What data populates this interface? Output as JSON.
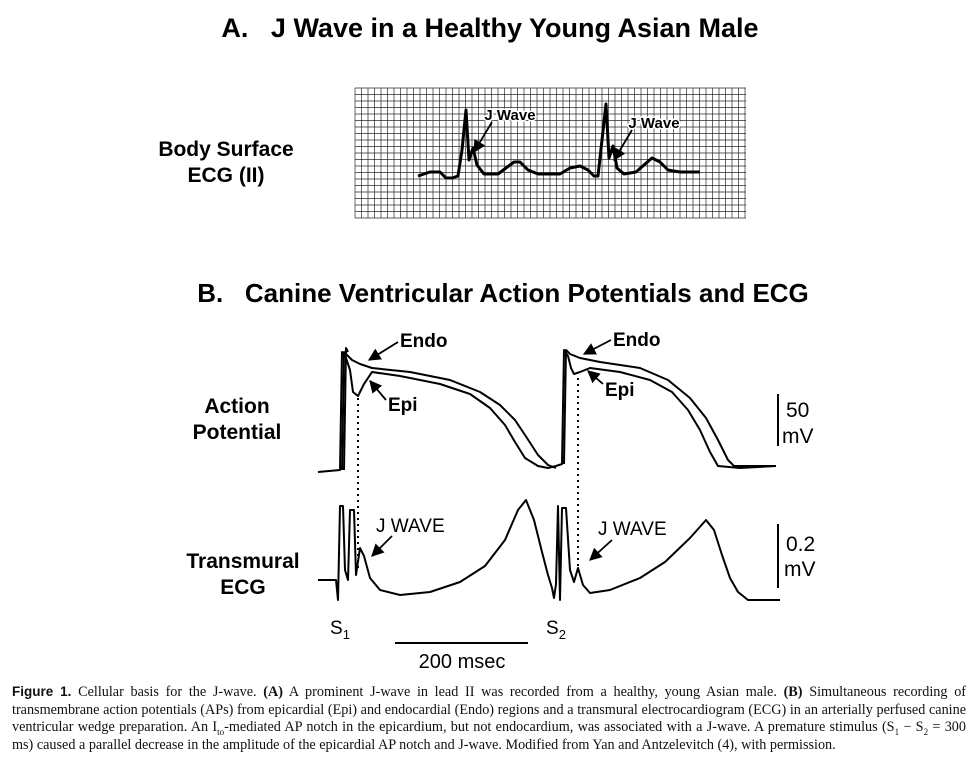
{
  "panel_a": {
    "title": "A.   J Wave in a Healthy Young Asian Male",
    "ecg_label_line1": "Body Surface",
    "ecg_label_line2": "ECG (II)",
    "jwave_label_1": "J Wave",
    "jwave_label_2": "J Wave"
  },
  "panel_b": {
    "title": "B.   Canine Ventricular Action Potentials and ECG",
    "ap_label_line1": "Action",
    "ap_label_line2": "Potential",
    "ecg_label_line1": "Transmural",
    "ecg_label_line2": "ECG",
    "endo_1": "Endo",
    "endo_2": "Endo",
    "epi_1": "Epi",
    "epi_2": "Epi",
    "jwave_1": "J WAVE",
    "jwave_2": "J WAVE",
    "scale_ap_value": "50",
    "scale_ap_unit": "mV",
    "scale_ecg_value": "0.2",
    "scale_ecg_unit": "mV",
    "s1_letter": "S",
    "s1_sub": "1",
    "s2_letter": "S",
    "s2_sub": "2",
    "time_scale": "200 msec"
  },
  "caption": {
    "label": "Figure 1.",
    "text_1": " Cellular basis for the J-wave. ",
    "a_label": "(A)",
    "text_2": " A prominent J-wave in lead II was recorded from a healthy, young Asian male. ",
    "b_label": "(B)",
    "text_3": " Simultaneous recording of transmembrane action potentials (APs) from epicardial (Epi) and endocardial (Endo) regions and a transmural electrocardiogram (ECG) in an arterially perfused canine ventricular wedge preparation. An I",
    "ito_sub": "to",
    "text_4": "-mediated AP notch in the epicardium, but not endocardium, was associated with a J-wave. A premature stimulus (S",
    "s1_sub": "1",
    "text_5": " − S",
    "s2_sub": "2",
    "text_6": " = 300 ms) caused a parallel decrease in the amplitude of the epicardial AP notch and J-wave. Modified from Yan and Antzelevitch (4), with permission."
  },
  "colors": {
    "ink": "#000000",
    "grid": "#2a2a2a"
  }
}
